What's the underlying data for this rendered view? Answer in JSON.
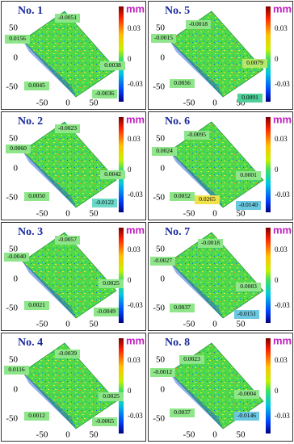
{
  "panels": [
    {
      "title": "No. 1",
      "unit": "mm",
      "colorbar_ticks": [
        "0.03",
        "0",
        "-0.03"
      ],
      "y_ticks": [
        "50",
        "0",
        "-50"
      ],
      "x_ticks": [
        "-50",
        "0",
        "50"
      ],
      "annotations": [
        {
          "text": "0.0156",
          "color": "#8fe68a"
        },
        {
          "text": "-0.0051",
          "color": "#8fe68a"
        },
        {
          "text": "0.0038",
          "color": "#8fe68a"
        },
        {
          "text": "0.0045",
          "color": "#8fe68a"
        },
        {
          "text": "-0.0036",
          "color": "#8fe68a"
        }
      ]
    },
    {
      "title": "No. 5",
      "unit": "mm",
      "colorbar_ticks": [
        "0.03",
        "0",
        "-0.03"
      ],
      "y_ticks": [
        "50",
        "0",
        "-50"
      ],
      "x_ticks": [
        "-50",
        "0",
        "50"
      ],
      "annotations": [
        {
          "text": "-0.0015",
          "color": "#8fe68a"
        },
        {
          "text": "-0.0018",
          "color": "#8fe68a"
        },
        {
          "text": "0.0079",
          "color": "#b4e86a"
        },
        {
          "text": "0.0056",
          "color": "#8fe68a"
        },
        {
          "text": "0.0091",
          "color": "#4fcf9a"
        }
      ]
    },
    {
      "title": "No. 2",
      "unit": "mm",
      "colorbar_ticks": [
        "0.03",
        "0",
        "-0.03"
      ],
      "y_ticks": [
        "50",
        "0",
        "-50"
      ],
      "x_ticks": [
        "-50",
        "0",
        "50"
      ],
      "annotations": [
        {
          "text": "0.0060",
          "color": "#8fe68a"
        },
        {
          "text": "-0.0023",
          "color": "#8fe68a"
        },
        {
          "text": "0.0042",
          "color": "#8fe68a"
        },
        {
          "text": "0.0050",
          "color": "#8fe68a"
        },
        {
          "text": "-0.0122",
          "color": "#6cd8c8"
        }
      ]
    },
    {
      "title": "No. 6",
      "unit": "mm",
      "colorbar_ticks": [
        "0.03",
        "0",
        "-0.03"
      ],
      "y_ticks": [
        "50",
        "0",
        "-50"
      ],
      "x_ticks": [
        "-50",
        "0",
        "50"
      ],
      "annotations": [
        {
          "text": "0.0024",
          "color": "#8fe68a"
        },
        {
          "text": "-0.0095",
          "color": "#8fe68a"
        },
        {
          "text": "0.0001",
          "color": "#8fe68a"
        },
        {
          "text": "0.0052",
          "color": "#8fe68a"
        },
        {
          "text": "0.0265",
          "color": "#f2e24a"
        },
        {
          "text": "-0.0140",
          "color": "#6cc8e0"
        }
      ]
    },
    {
      "title": "No. 3",
      "unit": "mm",
      "colorbar_ticks": [
        "0.03",
        "0",
        "-0.03"
      ],
      "y_ticks": [
        "50",
        "0",
        "-50"
      ],
      "x_ticks": [
        "-50",
        "0",
        "50"
      ],
      "annotations": [
        {
          "text": "-0.0040",
          "color": "#8fe68a"
        },
        {
          "text": "-0.0057",
          "color": "#8fe68a"
        },
        {
          "text": "0.0025",
          "color": "#8fe68a"
        },
        {
          "text": "0.0021",
          "color": "#8fe68a"
        },
        {
          "text": "-0.0049",
          "color": "#8fe68a"
        }
      ]
    },
    {
      "title": "No. 7",
      "unit": "mm",
      "colorbar_ticks": [
        "0.03",
        "0",
        "-0.03"
      ],
      "y_ticks": [
        "50",
        "0",
        "-50"
      ],
      "x_ticks": [
        "-50",
        "0",
        "50"
      ],
      "annotations": [
        {
          "text": "-0.0027",
          "color": "#8fe68a"
        },
        {
          "text": "-0.0018",
          "color": "#8fe68a"
        },
        {
          "text": "0.0083",
          "color": "#8fe68a"
        },
        {
          "text": "0.0037",
          "color": "#8fe68a"
        },
        {
          "text": "-0.0151",
          "color": "#6cc8e0"
        }
      ]
    },
    {
      "title": "No. 4",
      "unit": "mm",
      "colorbar_ticks": [
        "0.03",
        "0",
        "-0.03"
      ],
      "y_ticks": [
        "50",
        "0",
        "-50"
      ],
      "x_ticks": [
        "-50",
        "0",
        "50"
      ],
      "annotations": [
        {
          "text": "0.0116",
          "color": "#8fe68a"
        },
        {
          "text": "-0.0039",
          "color": "#8fe68a"
        },
        {
          "text": "0.0025",
          "color": "#8fe68a"
        },
        {
          "text": "0.0012",
          "color": "#8fe68a"
        },
        {
          "text": "-0.0065",
          "color": "#8fe68a"
        }
      ]
    },
    {
      "title": "No. 8",
      "unit": "mm",
      "colorbar_ticks": [
        "0.03",
        "0",
        "-0.03"
      ],
      "y_ticks": [
        "50",
        "0",
        "-50"
      ],
      "x_ticks": [
        "-50",
        "0",
        "50"
      ],
      "annotations": [
        {
          "text": "-0.0012",
          "color": "#8fe68a"
        },
        {
          "text": "0.0023",
          "color": "#8fe68a"
        },
        {
          "text": "-0.0004",
          "color": "#8fe68a"
        },
        {
          "text": "0.0037",
          "color": "#8fe68a"
        },
        {
          "text": "-0.0146",
          "color": "#6cc8e0"
        }
      ]
    }
  ]
}
